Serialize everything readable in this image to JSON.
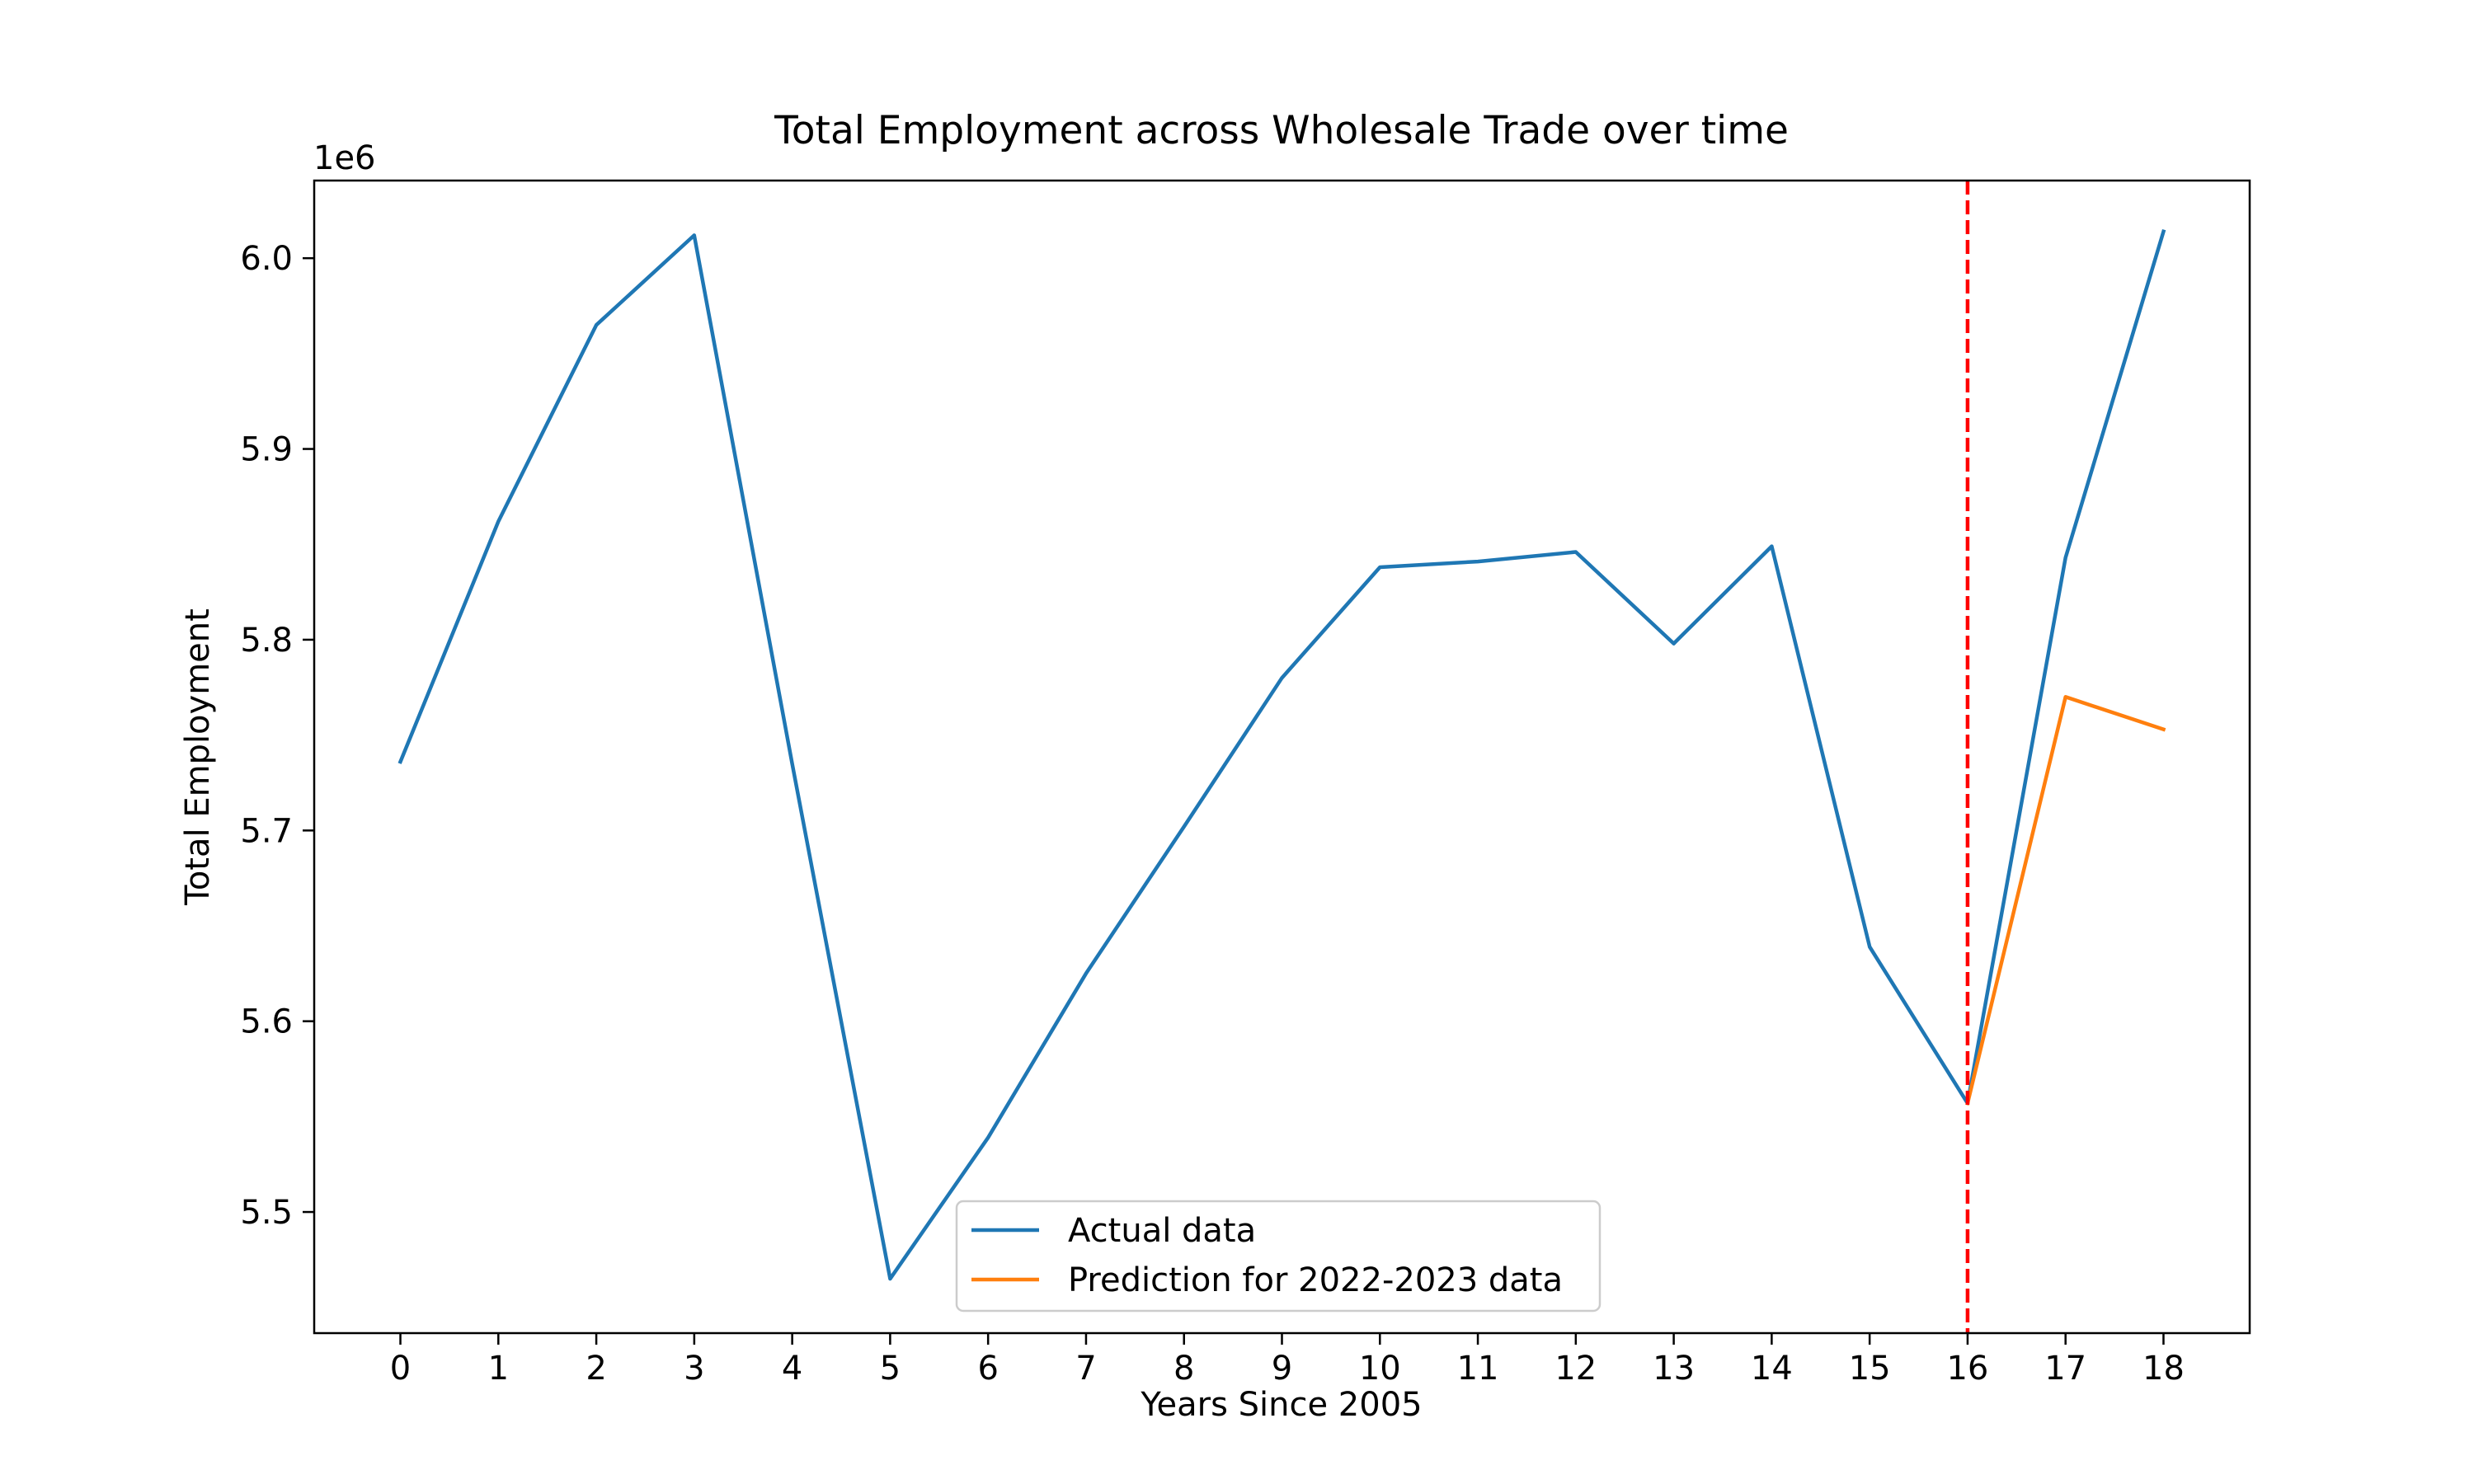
{
  "chart_data": {
    "type": "line",
    "title": "Total Employment across Wholesale Trade over time",
    "xlabel": "Years Since 2005",
    "ylabel": "Total Employment",
    "y_offset_label": "1e6",
    "xlim": [
      -0.88,
      18.88
    ],
    "ylim": [
      5436500,
      6040700
    ],
    "y_scale_factor": 1000000,
    "x_ticks": [
      0,
      1,
      2,
      3,
      4,
      5,
      6,
      7,
      8,
      9,
      10,
      11,
      12,
      13,
      14,
      15,
      16,
      17,
      18
    ],
    "y_ticks": [
      5500000,
      5600000,
      5700000,
      5800000,
      5900000,
      6000000
    ],
    "y_tick_labels": [
      "5.5",
      "5.6",
      "5.7",
      "5.8",
      "5.9",
      "6.0"
    ],
    "grid": false,
    "legend_position": "lower center",
    "series": [
      {
        "name": "Actual data",
        "color": "#1f77b4",
        "x": [
          0,
          1,
          2,
          3,
          4,
          5,
          6,
          7,
          8,
          9,
          10,
          11,
          12,
          13,
          14,
          15,
          16,
          17,
          18
        ],
        "values": [
          5736000,
          5862000,
          5965000,
          6012000,
          5735000,
          5465000,
          5539000,
          5625000,
          5702000,
          5780000,
          5838000,
          5841000,
          5846000,
          5798000,
          5849000,
          5639000,
          5557000,
          5843000,
          6014000
        ]
      },
      {
        "name": "Prediction for 2022-2023 data",
        "color": "#ff7f0e",
        "x": [
          16,
          17,
          18
        ],
        "values": [
          5557000,
          5770000,
          5753000
        ]
      }
    ],
    "vline": {
      "x": 16,
      "color": "#ff0000",
      "style": "dashed"
    }
  }
}
